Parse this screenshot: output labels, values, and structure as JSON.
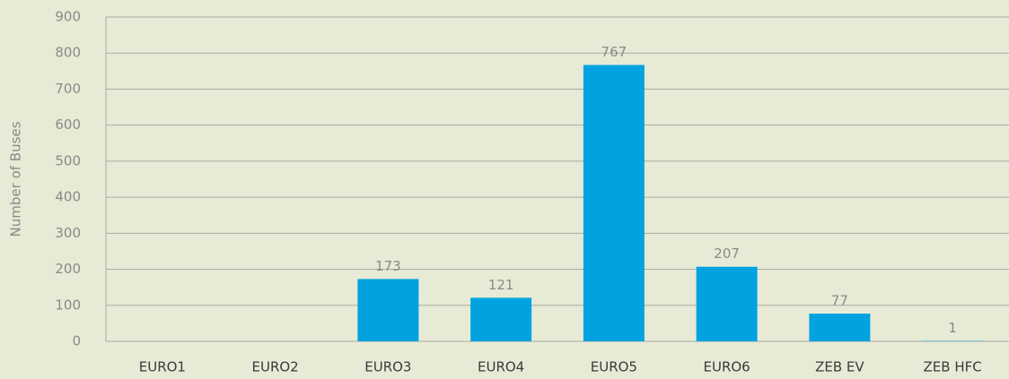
{
  "chart_data": {
    "type": "bar",
    "y_label": "Number of Buses",
    "categories": [
      "EURO1",
      "EURO2",
      "EURO3",
      "EURO4",
      "EURO5",
      "EURO6",
      "ZEB EV",
      "ZEB HFC"
    ],
    "values": [
      null,
      null,
      173,
      121,
      767,
      207,
      77,
      1
    ],
    "color": "#00a3e0",
    "ylim": [
      0,
      900
    ],
    "yticks": [
      0,
      100,
      200,
      300,
      400,
      500,
      600,
      700,
      800,
      900
    ],
    "grid": true
  }
}
